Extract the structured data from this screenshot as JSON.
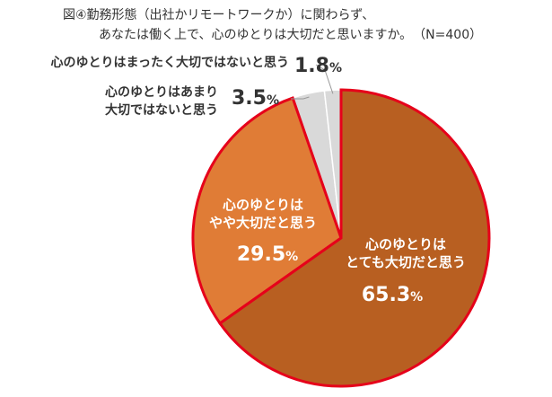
{
  "title": {
    "line1": "図④勤務形態（出社かリモートワークか）に関わらず、",
    "line2": "あなたは働く上で、心のゆとりは大切だと思いますか。",
    "n": "（N=400）"
  },
  "chart_data": {
    "type": "pie",
    "title": "図④勤務形態（出社かリモートワークか）に関わらず、あなたは働く上で、心のゆとりは大切だと思いますか。",
    "sample": "N=400",
    "unit": "%",
    "slices": [
      {
        "label_lines": [
          "心のゆとりは",
          "とても大切だと思う"
        ],
        "label": "心のゆとりはとても大切だと思う",
        "value": 65.3,
        "display": "65.3",
        "color": "#b85f21"
      },
      {
        "label_lines": [
          "心のゆとりは",
          "やや大切だと思う"
        ],
        "label": "心のゆとりはやや大切だと思う",
        "value": 29.5,
        "display": "29.5",
        "color": "#e07c36"
      },
      {
        "label_lines": [
          "心のゆとりはあまり",
          "大切ではないと思う"
        ],
        "label": "心のゆとりはあまり大切ではないと思う",
        "value": 3.5,
        "display": "3.5",
        "color": "#d9d9d9"
      },
      {
        "label_lines": [
          "心のゆとりはまったく大切ではないと思う"
        ],
        "label": "心のゆとりはまったく大切ではないと思う",
        "value": 1.8,
        "display": "1.8",
        "color": "#d9d9d9"
      }
    ],
    "highlight_stroke": "#e6001a",
    "start_angle_deg": 0,
    "direction": "clockwise"
  }
}
